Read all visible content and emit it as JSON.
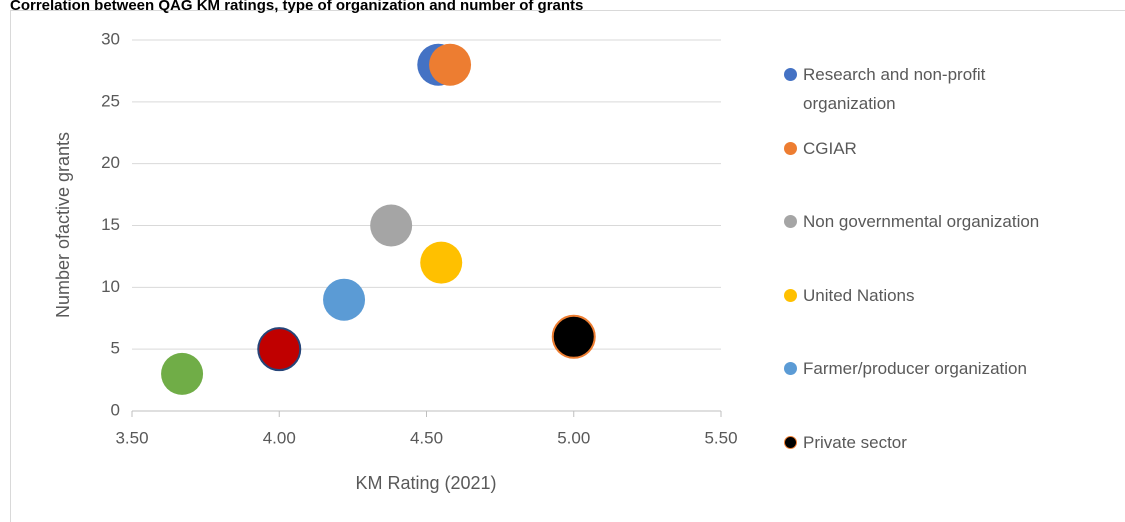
{
  "chart_data": {
    "type": "scatter",
    "title": "Correlation between QAG KM ratings, type of organization and number of grants",
    "xlabel": "KM Rating (2021)",
    "ylabel": "Number ofactive grants",
    "xlim": [
      3.5,
      5.5
    ],
    "xticks": [
      {
        "value": 3.5,
        "label": "3.50"
      },
      {
        "value": 4.0,
        "label": "4.00"
      },
      {
        "value": 4.5,
        "label": "4.50"
      },
      {
        "value": 5.0,
        "label": "5.00"
      },
      {
        "value": 5.5,
        "label": "5.50"
      }
    ],
    "ylim": [
      0,
      30
    ],
    "yticks": [
      0,
      5,
      10,
      15,
      20,
      25,
      30
    ],
    "grid": true,
    "series": [
      {
        "name": "Research and non-profit organization",
        "color": "#4472c4",
        "x": [
          4.54
        ],
        "values": [
          28
        ]
      },
      {
        "name": "CGIAR",
        "color": "#ed7d31",
        "x": [
          4.58
        ],
        "values": [
          28
        ]
      },
      {
        "name": "Non governmental organization",
        "color": "#a5a5a5",
        "x": [
          4.38
        ],
        "values": [
          15
        ]
      },
      {
        "name": "United Nations",
        "color": "#ffc000",
        "x": [
          4.55
        ],
        "values": [
          12
        ]
      },
      {
        "name": "Farmer/producer organization",
        "color": "#5b9bd5",
        "x": [
          4.22
        ],
        "values": [
          9
        ]
      },
      {
        "name": "Private sector",
        "color": "#000000",
        "stroke": "#ed7d31",
        "x": [
          5.0
        ],
        "values": [
          6
        ]
      },
      {
        "color": "#70ad47",
        "x": [
          3.67
        ],
        "values": [
          3
        ]
      },
      {
        "color": "#c00000",
        "stroke": "#264478",
        "x": [
          4.0
        ],
        "values": [
          5
        ]
      }
    ]
  }
}
